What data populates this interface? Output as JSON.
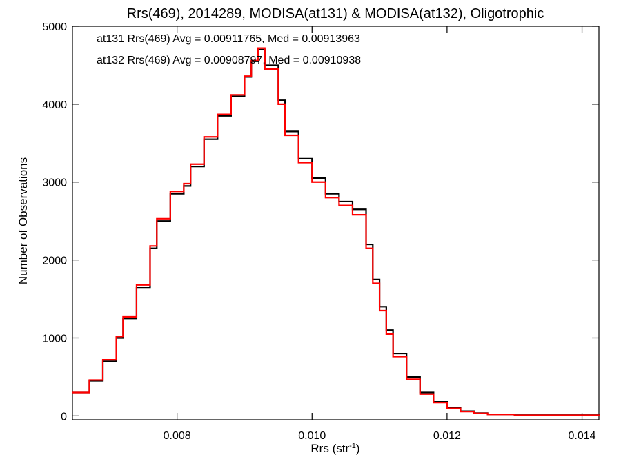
{
  "chart_data": {
    "type": "line",
    "title": "Rrs(469), 2014289, MODISA(at131) & MODISA(at132), Oligotrophic",
    "xlabel_main": "Rrs (str",
    "xlabel_sup": "-1",
    "xlabel_close": ")",
    "ylabel": "Number of Observations",
    "xlim": [
      0.00645,
      0.01425
    ],
    "ylim": [
      -50,
      5000
    ],
    "xticks": [
      0.008,
      0.01,
      0.012,
      0.014
    ],
    "xtick_labels": [
      "0.008",
      "0.010",
      "0.012",
      "0.014"
    ],
    "yticks": [
      0,
      1000,
      2000,
      3000,
      4000,
      5000
    ],
    "ytick_labels": [
      "0",
      "1000",
      "2000",
      "3000",
      "4000",
      "5000"
    ],
    "grid": false,
    "annotations": [
      {
        "text": "at131 Rrs(469) Avg = 0.00911765, Med = 0.00913963",
        "color": "#000000"
      },
      {
        "text": "at132 Rrs(469) Avg = 0.00908797, Med = 0.00910938",
        "color": "#ff0000"
      }
    ],
    "series": [
      {
        "name": "at131",
        "color": "#000000",
        "step": true,
        "points": [
          [
            0.00645,
            300
          ],
          [
            0.0067,
            450
          ],
          [
            0.0069,
            700
          ],
          [
            0.0071,
            1000
          ],
          [
            0.0072,
            1250
          ],
          [
            0.0074,
            1650
          ],
          [
            0.0076,
            2150
          ],
          [
            0.0077,
            2500
          ],
          [
            0.0079,
            2850
          ],
          [
            0.0081,
            2950
          ],
          [
            0.0082,
            3200
          ],
          [
            0.0084,
            3550
          ],
          [
            0.0086,
            3850
          ],
          [
            0.0088,
            4100
          ],
          [
            0.009,
            4350
          ],
          [
            0.0091,
            4550
          ],
          [
            0.0092,
            4700
          ],
          [
            0.0093,
            4500
          ],
          [
            0.0095,
            4050
          ],
          [
            0.0096,
            3650
          ],
          [
            0.0098,
            3300
          ],
          [
            0.01,
            3050
          ],
          [
            0.0102,
            2850
          ],
          [
            0.0104,
            2750
          ],
          [
            0.0106,
            2650
          ],
          [
            0.0108,
            2200
          ],
          [
            0.0109,
            1750
          ],
          [
            0.011,
            1400
          ],
          [
            0.0111,
            1100
          ],
          [
            0.0112,
            800
          ],
          [
            0.0114,
            500
          ],
          [
            0.0116,
            300
          ],
          [
            0.0118,
            180
          ],
          [
            0.012,
            100
          ],
          [
            0.0122,
            60
          ],
          [
            0.0124,
            35
          ],
          [
            0.0126,
            20
          ],
          [
            0.013,
            10
          ],
          [
            0.01425,
            0
          ]
        ]
      },
      {
        "name": "at132",
        "color": "#ff0000",
        "step": true,
        "points": [
          [
            0.00645,
            300
          ],
          [
            0.0067,
            460
          ],
          [
            0.0069,
            720
          ],
          [
            0.0071,
            1020
          ],
          [
            0.0072,
            1270
          ],
          [
            0.0074,
            1680
          ],
          [
            0.0076,
            2180
          ],
          [
            0.0077,
            2530
          ],
          [
            0.0079,
            2880
          ],
          [
            0.0081,
            2980
          ],
          [
            0.0082,
            3230
          ],
          [
            0.0084,
            3580
          ],
          [
            0.0086,
            3870
          ],
          [
            0.0088,
            4120
          ],
          [
            0.009,
            4360
          ],
          [
            0.0091,
            4560
          ],
          [
            0.0092,
            4720
          ],
          [
            0.0093,
            4450
          ],
          [
            0.0095,
            4000
          ],
          [
            0.0096,
            3600
          ],
          [
            0.0098,
            3250
          ],
          [
            0.01,
            3000
          ],
          [
            0.0102,
            2800
          ],
          [
            0.0104,
            2700
          ],
          [
            0.0106,
            2580
          ],
          [
            0.0108,
            2150
          ],
          [
            0.0109,
            1700
          ],
          [
            0.011,
            1350
          ],
          [
            0.0111,
            1050
          ],
          [
            0.0112,
            760
          ],
          [
            0.0114,
            470
          ],
          [
            0.0116,
            280
          ],
          [
            0.0118,
            170
          ],
          [
            0.012,
            95
          ],
          [
            0.0122,
            55
          ],
          [
            0.0124,
            32
          ],
          [
            0.0126,
            18
          ],
          [
            0.013,
            8
          ],
          [
            0.01425,
            0
          ]
        ]
      }
    ]
  }
}
